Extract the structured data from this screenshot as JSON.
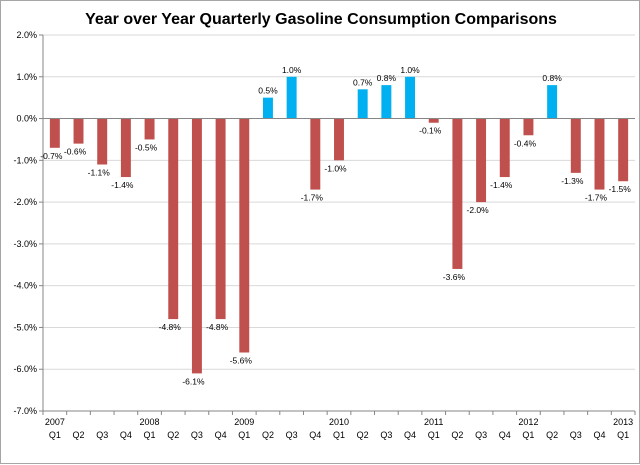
{
  "chart_data": {
    "type": "bar",
    "title": "Year over Year Quarterly Gasoline Consumption Comparisons",
    "xlabel": "",
    "ylabel": "",
    "ylim": [
      -7.0,
      2.0
    ],
    "yticks": [
      "2.0%",
      "1.0%",
      "0.0%",
      "-1.0%",
      "-2.0%",
      "-3.0%",
      "-4.0%",
      "-5.0%",
      "-6.0%",
      "-7.0%"
    ],
    "grid": true,
    "legend": "none",
    "colors": {
      "negative": "#c0504d",
      "positive": "#00b0f0"
    },
    "categories": [
      {
        "year": "2007",
        "q": "Q1"
      },
      {
        "year": "",
        "q": "Q2"
      },
      {
        "year": "",
        "q": "Q3"
      },
      {
        "year": "",
        "q": "Q4"
      },
      {
        "year": "2008",
        "q": "Q1"
      },
      {
        "year": "",
        "q": "Q2"
      },
      {
        "year": "",
        "q": "Q3"
      },
      {
        "year": "",
        "q": "Q4"
      },
      {
        "year": "2009",
        "q": "Q1"
      },
      {
        "year": "",
        "q": "Q2"
      },
      {
        "year": "",
        "q": "Q3"
      },
      {
        "year": "",
        "q": "Q4"
      },
      {
        "year": "2010",
        "q": "Q1"
      },
      {
        "year": "",
        "q": "Q2"
      },
      {
        "year": "",
        "q": "Q3"
      },
      {
        "year": "",
        "q": "Q4"
      },
      {
        "year": "2011",
        "q": "Q1"
      },
      {
        "year": "",
        "q": "Q2"
      },
      {
        "year": "",
        "q": "Q3"
      },
      {
        "year": "",
        "q": "Q4"
      },
      {
        "year": "2012",
        "q": "Q1"
      },
      {
        "year": "",
        "q": "Q2"
      },
      {
        "year": "",
        "q": "Q3"
      },
      {
        "year": "",
        "q": "Q4"
      },
      {
        "year": "2013",
        "q": "Q1"
      }
    ],
    "values": [
      -0.7,
      -0.6,
      -1.1,
      -1.4,
      -0.5,
      -4.8,
      -6.1,
      -4.8,
      -5.6,
      0.5,
      1.0,
      -1.7,
      -1.0,
      0.7,
      0.8,
      1.0,
      -0.1,
      -3.6,
      -2.0,
      -1.4,
      -0.4,
      0.8,
      -1.3,
      -1.7,
      -1.5
    ],
    "labels": [
      "-0.7%",
      "-0.6%",
      "-1.1%",
      "-1.4%",
      "-0.5%",
      "-4.8%",
      "-6.1%",
      "-4.8%",
      "-5.6%",
      "0.5%",
      "1.0%",
      "-1.7%",
      "-1.0%",
      "0.7%",
      "0.8%",
      "1.0%",
      "-0.1%",
      "-3.6%",
      "-2.0%",
      "-1.4%",
      "-0.4%",
      "0.8%",
      "-1.3%",
      "-1.7%",
      "-1.5%"
    ]
  }
}
